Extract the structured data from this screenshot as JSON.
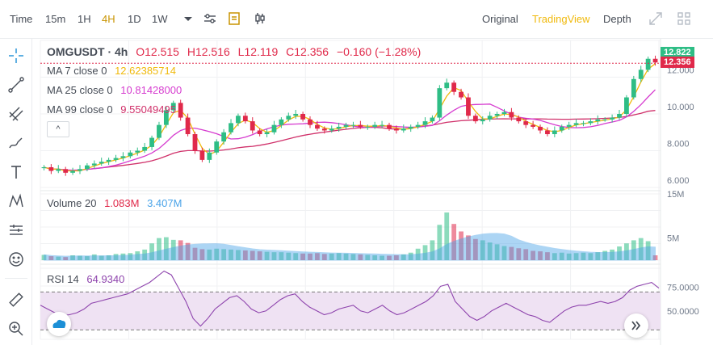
{
  "toolbar": {
    "intervals": [
      {
        "label": "Time",
        "active": false
      },
      {
        "label": "15m",
        "active": false
      },
      {
        "label": "1H",
        "active": false
      },
      {
        "label": "4H",
        "active": true
      },
      {
        "label": "1D",
        "active": false
      },
      {
        "label": "1W",
        "active": false
      }
    ],
    "views": [
      {
        "label": "Original",
        "active": false
      },
      {
        "label": "TradingView",
        "active": true
      },
      {
        "label": "Depth",
        "active": false
      }
    ]
  },
  "legend": {
    "symbol": "OMGUSDT · 4h",
    "open": "O12.515",
    "high": "H12.516",
    "low": "L12.119",
    "close": "C12.356",
    "change": "−0.160 (−1.28%)",
    "ma7_label": "MA 7 close 0",
    "ma7_value": "12.62385714",
    "ma25_label": "MA 25 close 0",
    "ma25_value": "10.81428000",
    "ma99_label": "MA 99 close 0",
    "ma99_value": "9.55049495",
    "volume_label": "Volume 20",
    "volume_value1": "1.083M",
    "volume_value2": "3.407M",
    "rsi_label": "RSI 14",
    "rsi_value": "64.9340",
    "collapse_glyph": "^"
  },
  "colors": {
    "up": "#2ebd85",
    "down": "#e0294a",
    "ma7": "#f0b90b",
    "ma25": "#d63ccf",
    "ma99": "#d0306a",
    "volume_ma": "#4aa3e8",
    "rsi": "#8e44ad"
  },
  "chart_data": {
    "type": "candlestick",
    "price_axis_ticks": [
      "6.000",
      "8.000",
      "10.000",
      "12.000"
    ],
    "price_ylim": [
      5.6,
      13.6
    ],
    "last_price": "12.356",
    "high_price": "12.822",
    "volume_axis_ticks": [
      "5M",
      "15M"
    ],
    "volume_ylim": [
      0,
      15
    ],
    "rsi_axis_ticks": [
      "50.0000",
      "75.0000"
    ],
    "rsi_ylim": [
      20,
      95
    ],
    "rsi_band": [
      30,
      70
    ],
    "close_series": [
      6.7,
      6.5,
      6.6,
      6.4,
      6.5,
      6.6,
      6.8,
      6.9,
      7.0,
      7.1,
      7.2,
      7.3,
      7.5,
      7.6,
      7.8,
      8.3,
      9.0,
      9.8,
      10.2,
      9.4,
      8.5,
      7.6,
      7.1,
      7.5,
      8.1,
      8.6,
      9.1,
      9.5,
      9.2,
      8.7,
      8.5,
      8.6,
      9.0,
      9.3,
      9.5,
      9.6,
      9.3,
      9.0,
      8.8,
      8.7,
      8.8,
      8.9,
      9.0,
      9.0,
      8.9,
      8.9,
      9.0,
      9.0,
      8.8,
      8.7,
      8.8,
      8.9,
      9.0,
      9.2,
      9.4,
      11.0,
      11.3,
      10.8,
      10.5,
      9.5,
      9.2,
      9.3,
      9.5,
      9.6,
      9.7,
      9.4,
      9.2,
      9.0,
      8.9,
      8.7,
      8.5,
      8.7,
      8.9,
      9.0,
      9.1,
      9.1,
      9.2,
      9.3,
      9.3,
      9.4,
      9.6,
      10.5,
      11.5,
      12.0,
      12.6,
      12.4
    ],
    "volume_series": [
      1.2,
      0.9,
      0.8,
      0.7,
      1.1,
      1.0,
      0.9,
      1.3,
      1.0,
      1.1,
      1.4,
      1.5,
      1.6,
      2.0,
      2.4,
      3.8,
      5.0,
      5.2,
      4.6,
      4.5,
      3.9,
      2.8,
      2.5,
      2.4,
      2.6,
      2.5,
      2.4,
      2.3,
      2.2,
      2.1,
      2.0,
      1.9,
      1.8,
      1.8,
      1.7,
      1.6,
      1.5,
      1.5,
      1.6,
      1.4,
      1.5,
      1.6,
      1.5,
      1.4,
      1.3,
      1.2,
      1.1,
      1.0,
      1.0,
      1.1,
      1.3,
      1.7,
      2.6,
      3.4,
      4.5,
      8.0,
      10.8,
      8.2,
      6.5,
      5.6,
      4.8,
      4.5,
      4.0,
      3.6,
      3.2,
      3.0,
      2.7,
      2.5,
      2.1,
      2.0,
      1.8,
      1.6,
      1.7,
      1.5,
      1.6,
      1.7,
      1.6,
      1.8,
      2.1,
      2.4,
      3.1,
      3.8,
      4.5,
      5.0,
      4.3,
      1.1
    ],
    "rsi_series": [
      56,
      52,
      48,
      45,
      46,
      48,
      52,
      58,
      60,
      62,
      64,
      66,
      68,
      72,
      76,
      80,
      86,
      92,
      88,
      74,
      60,
      42,
      34,
      42,
      52,
      58,
      64,
      66,
      60,
      52,
      48,
      50,
      56,
      62,
      66,
      68,
      60,
      54,
      50,
      46,
      48,
      52,
      54,
      56,
      50,
      48,
      52,
      56,
      50,
      46,
      48,
      52,
      56,
      60,
      66,
      76,
      78,
      60,
      52,
      44,
      40,
      44,
      50,
      54,
      58,
      54,
      50,
      46,
      44,
      40,
      38,
      44,
      50,
      54,
      56,
      56,
      58,
      60,
      58,
      60,
      64,
      72,
      76,
      78,
      80,
      74
    ]
  }
}
